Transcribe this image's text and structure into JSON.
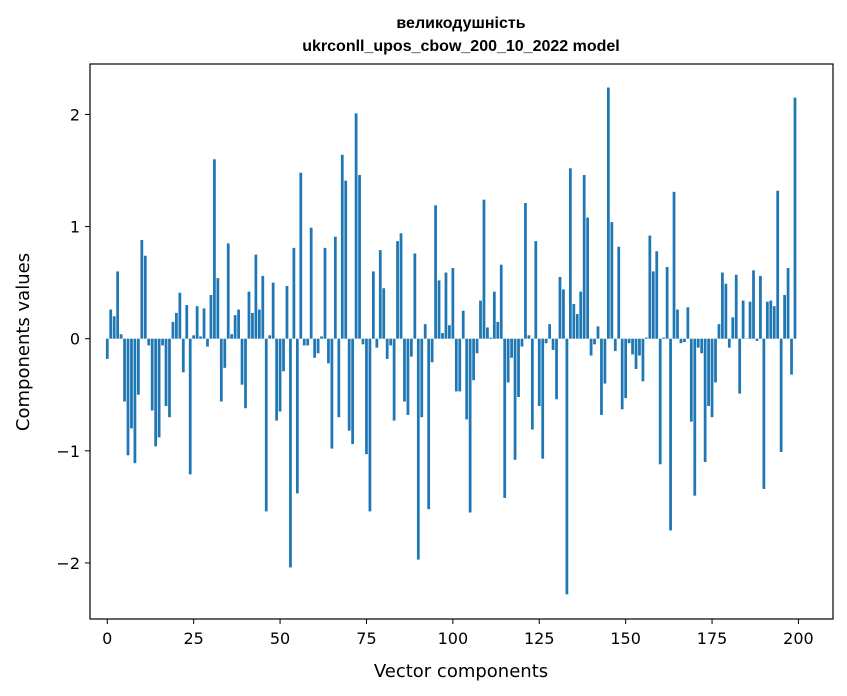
{
  "chart_data": {
    "type": "bar",
    "title_line1": "великодушність",
    "title_line2": "ukrconll_upos_cbow_200_10_2022 model",
    "xlabel": "Vector components",
    "ylabel": "Components values",
    "xlim": [
      -5,
      210
    ],
    "ylim": [
      -2.5,
      2.45
    ],
    "xticks": [
      0,
      25,
      50,
      75,
      100,
      125,
      150,
      175,
      200
    ],
    "yticks": [
      -2,
      -1,
      0,
      1,
      2
    ],
    "ytick_labels": [
      "−2",
      "−1",
      "0",
      "1",
      "2"
    ],
    "bar_color": "#1f77b4",
    "values": [
      -0.18,
      0.26,
      0.2,
      0.6,
      0.04,
      -0.56,
      -1.04,
      -0.8,
      -1.11,
      -0.5,
      0.88,
      0.74,
      -0.06,
      -0.64,
      -0.96,
      -0.88,
      -0.06,
      -0.6,
      -0.7,
      0.15,
      0.23,
      0.41,
      -0.3,
      0.3,
      -1.21,
      0.03,
      0.29,
      0.02,
      0.27,
      -0.07,
      0.39,
      1.6,
      0.54,
      -0.56,
      -0.26,
      0.85,
      0.04,
      0.21,
      0.26,
      -0.41,
      -0.62,
      0.42,
      0.23,
      0.75,
      0.26,
      0.56,
      -1.54,
      0.03,
      0.5,
      -0.73,
      -0.65,
      -0.29,
      0.47,
      -2.04,
      0.81,
      -1.38,
      1.48,
      -0.06,
      -0.06,
      0.99,
      -0.17,
      -0.13,
      0.02,
      0.81,
      -0.22,
      -0.98,
      0.91,
      -0.7,
      1.64,
      1.41,
      -0.82,
      -0.94,
      2.01,
      1.46,
      -0.05,
      -1.03,
      -1.54,
      0.6,
      -0.08,
      0.79,
      0.45,
      -0.18,
      -0.06,
      -0.73,
      0.87,
      0.94,
      -0.56,
      -0.68,
      -0.16,
      0.76,
      -1.97,
      -0.7,
      0.13,
      -1.52,
      -0.21,
      1.19,
      0.52,
      0.05,
      0.59,
      0.12,
      0.63,
      -0.47,
      -0.47,
      0.25,
      -0.72,
      -1.55,
      -0.37,
      -0.13,
      0.34,
      1.24,
      0.1,
      0.01,
      0.42,
      0.15,
      0.66,
      -1.42,
      -0.39,
      -0.17,
      -1.08,
      -0.52,
      -0.07,
      1.21,
      0.03,
      -0.81,
      0.87,
      -0.6,
      -1.07,
      -0.04,
      0.13,
      -0.1,
      -0.54,
      0.55,
      0.44,
      -2.28,
      1.52,
      0.31,
      0.22,
      0.42,
      1.46,
      1.08,
      -0.15,
      -0.05,
      0.11,
      -0.68,
      -0.4,
      2.24,
      1.04,
      -0.11,
      0.82,
      -0.63,
      -0.53,
      -0.04,
      -0.14,
      -0.27,
      -0.15,
      -0.38,
      0.01,
      0.92,
      0.6,
      0.78,
      -1.12,
      0.01,
      0.64,
      -1.71,
      1.31,
      0.26,
      -0.04,
      -0.03,
      0.28,
      -0.74,
      -1.4,
      -0.08,
      -0.13,
      -1.1,
      -0.6,
      -0.7,
      -0.39,
      0.13,
      0.59,
      0.49,
      -0.08,
      0.19,
      0.57,
      -0.49,
      0.34,
      0.0,
      0.33,
      0.61,
      -0.02,
      0.56,
      -1.34,
      0.33,
      0.34,
      0.29,
      1.32,
      -1.01,
      0.39,
      0.63,
      -0.32,
      2.15
    ]
  }
}
